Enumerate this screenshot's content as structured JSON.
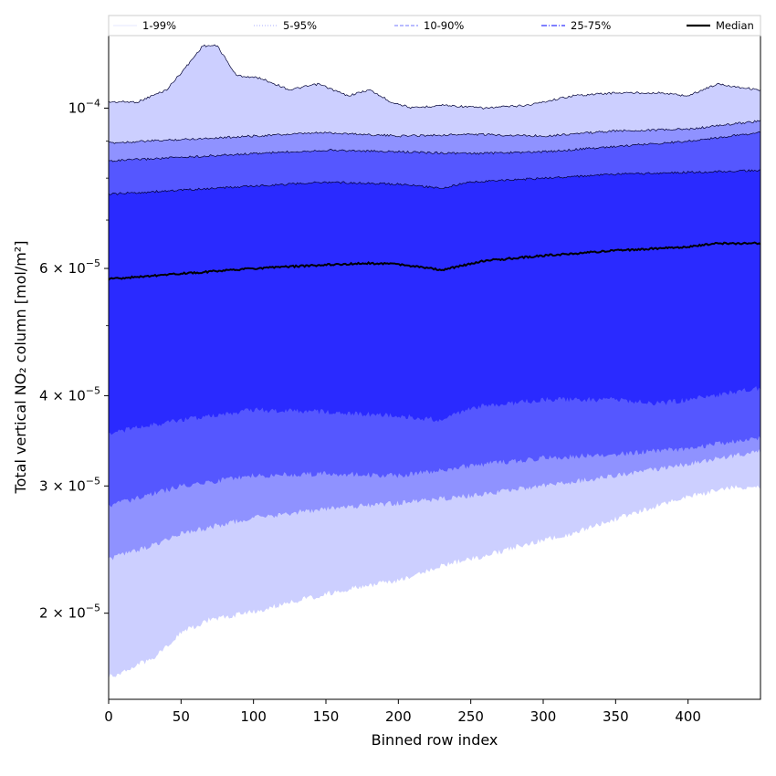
{
  "chart_data": {
    "type": "area",
    "xlabel": "Binned row index",
    "ylabel": "Total vertical NO₂ column [mol/m²]",
    "x_scale": "linear",
    "y_scale": "log",
    "xlim": [
      0,
      450
    ],
    "ylim": [
      1.52e-05,
      0.000126
    ],
    "x_ticks": [
      0,
      50,
      100,
      150,
      200,
      250,
      300,
      350,
      400
    ],
    "x_tick_labels": [
      "0",
      "50",
      "100",
      "150",
      "200",
      "250",
      "300",
      "350",
      "400"
    ],
    "y_ticks": [
      {
        "value": 2e-05,
        "mantissa": "2",
        "exponent": "−5"
      },
      {
        "value": 3e-05,
        "mantissa": "3",
        "exponent": "−5"
      },
      {
        "value": 4e-05,
        "mantissa": "4",
        "exponent": "−5"
      },
      {
        "value": 6e-05,
        "mantissa": "6",
        "exponent": "−5"
      },
      {
        "value": 0.0001,
        "mantissa": "10",
        "exponent": "−4"
      }
    ],
    "y_minor_ticks": [
      5e-05,
      7e-05,
      8e-05,
      9e-05
    ],
    "grid": false,
    "legend_position": "top, spanning full width above the plot",
    "bands": [
      {
        "name": "1-99%",
        "color": "#cccfff",
        "upper": [
          [
            0,
            0.000102
          ],
          [
            20,
            0.000102
          ],
          [
            40,
            0.000106
          ],
          [
            55,
            0.000115
          ],
          [
            65,
            0.000122
          ],
          [
            75,
            0.000122
          ],
          [
            88,
            0.000111
          ],
          [
            105,
            0.00011
          ],
          [
            125,
            0.000106
          ],
          [
            145,
            0.000108
          ],
          [
            165,
            0.000104
          ],
          [
            180,
            0.000106
          ],
          [
            195,
            0.000102
          ],
          [
            210,
            0.0001
          ],
          [
            230,
            0.000101
          ],
          [
            260,
            0.0001
          ],
          [
            290,
            0.000101
          ],
          [
            320,
            0.000104
          ],
          [
            350,
            0.000105
          ],
          [
            380,
            0.000105
          ],
          [
            400,
            0.000104
          ],
          [
            420,
            0.000108
          ],
          [
            449,
            0.000106
          ]
        ],
        "lower": [
          [
            0,
            1.63e-05
          ],
          [
            15,
            1.68e-05
          ],
          [
            30,
            1.73e-05
          ],
          [
            50,
            1.88e-05
          ],
          [
            70,
            1.96e-05
          ],
          [
            100,
            2.01e-05
          ],
          [
            130,
            2.08e-05
          ],
          [
            170,
            2.17e-05
          ],
          [
            200,
            2.22e-05
          ],
          [
            230,
            2.33e-05
          ],
          [
            260,
            2.4e-05
          ],
          [
            290,
            2.5e-05
          ],
          [
            320,
            2.58e-05
          ],
          [
            350,
            2.7e-05
          ],
          [
            380,
            2.82e-05
          ],
          [
            400,
            2.9e-05
          ],
          [
            430,
            2.98e-05
          ],
          [
            449,
            3e-05
          ]
        ]
      },
      {
        "name": "5-95%",
        "color": "#8f92ff",
        "upper": [
          [
            0,
            8.95e-05
          ],
          [
            50,
            9.05e-05
          ],
          [
            100,
            9.15e-05
          ],
          [
            150,
            9.25e-05
          ],
          [
            200,
            9.15e-05
          ],
          [
            250,
            9.2e-05
          ],
          [
            300,
            9.15e-05
          ],
          [
            350,
            9.3e-05
          ],
          [
            400,
            9.35e-05
          ],
          [
            449,
            9.6e-05
          ]
        ],
        "lower": [
          [
            0,
            2.38e-05
          ],
          [
            25,
            2.46e-05
          ],
          [
            50,
            2.58e-05
          ],
          [
            100,
            2.71e-05
          ],
          [
            150,
            2.79e-05
          ],
          [
            200,
            2.84e-05
          ],
          [
            250,
            2.91e-05
          ],
          [
            300,
            3e-05
          ],
          [
            350,
            3.1e-05
          ],
          [
            400,
            3.22e-05
          ],
          [
            449,
            3.35e-05
          ]
        ]
      },
      {
        "name": "10-90%",
        "color": "#5557ff",
        "upper": [
          [
            0,
            8.45e-05
          ],
          [
            50,
            8.55e-05
          ],
          [
            100,
            8.65e-05
          ],
          [
            150,
            8.75e-05
          ],
          [
            200,
            8.7e-05
          ],
          [
            250,
            8.65e-05
          ],
          [
            300,
            8.7e-05
          ],
          [
            350,
            8.85e-05
          ],
          [
            400,
            9e-05
          ],
          [
            449,
            9.25e-05
          ]
        ],
        "lower": [
          [
            0,
            2.82e-05
          ],
          [
            25,
            2.9e-05
          ],
          [
            50,
            3e-05
          ],
          [
            100,
            3.1e-05
          ],
          [
            150,
            3.12e-05
          ],
          [
            200,
            3.1e-05
          ],
          [
            250,
            3.2e-05
          ],
          [
            300,
            3.28e-05
          ],
          [
            350,
            3.32e-05
          ],
          [
            400,
            3.38e-05
          ],
          [
            449,
            3.5e-05
          ]
        ]
      },
      {
        "name": "25-75%",
        "color": "#2a2aff",
        "upper": [
          [
            0,
            7.6e-05
          ],
          [
            50,
            7.7e-05
          ],
          [
            100,
            7.8e-05
          ],
          [
            150,
            7.9e-05
          ],
          [
            200,
            7.85e-05
          ],
          [
            230,
            7.75e-05
          ],
          [
            250,
            7.9e-05
          ],
          [
            300,
            8e-05
          ],
          [
            350,
            8.1e-05
          ],
          [
            400,
            8.15e-05
          ],
          [
            449,
            8.2e-05
          ]
        ],
        "lower": [
          [
            0,
            3.55e-05
          ],
          [
            50,
            3.7e-05
          ],
          [
            100,
            3.82e-05
          ],
          [
            150,
            3.8e-05
          ],
          [
            200,
            3.75e-05
          ],
          [
            230,
            3.7e-05
          ],
          [
            250,
            3.85e-05
          ],
          [
            300,
            3.95e-05
          ],
          [
            350,
            3.95e-05
          ],
          [
            380,
            3.9e-05
          ],
          [
            400,
            3.95e-05
          ],
          [
            449,
            4.1e-05
          ]
        ]
      }
    ],
    "median": {
      "name": "Median",
      "color": "#000000",
      "values": [
        [
          0,
          5.8e-05
        ],
        [
          50,
          5.9e-05
        ],
        [
          100,
          6e-05
        ],
        [
          150,
          6.07e-05
        ],
        [
          180,
          6.1e-05
        ],
        [
          200,
          6.08e-05
        ],
        [
          230,
          5.97e-05
        ],
        [
          260,
          6.15e-05
        ],
        [
          300,
          6.25e-05
        ],
        [
          350,
          6.35e-05
        ],
        [
          400,
          6.43e-05
        ],
        [
          420,
          6.5e-05
        ],
        [
          449,
          6.5e-05
        ]
      ]
    },
    "legend": [
      {
        "label": "1-99%",
        "style": "solid",
        "width": 0.5,
        "color": "#cccfff"
      },
      {
        "label": "5-95%",
        "style": "dotted",
        "width": 0.8,
        "color": "#8f92ff"
      },
      {
        "label": "10-90%",
        "style": "dashed",
        "width": 1.2,
        "color": "#8f92ff"
      },
      {
        "label": "25-75%",
        "style": "dashdot",
        "width": 1.4,
        "color": "#5557ff"
      },
      {
        "label": "Median",
        "style": "solid",
        "width": 2.2,
        "color": "#000000"
      }
    ]
  }
}
